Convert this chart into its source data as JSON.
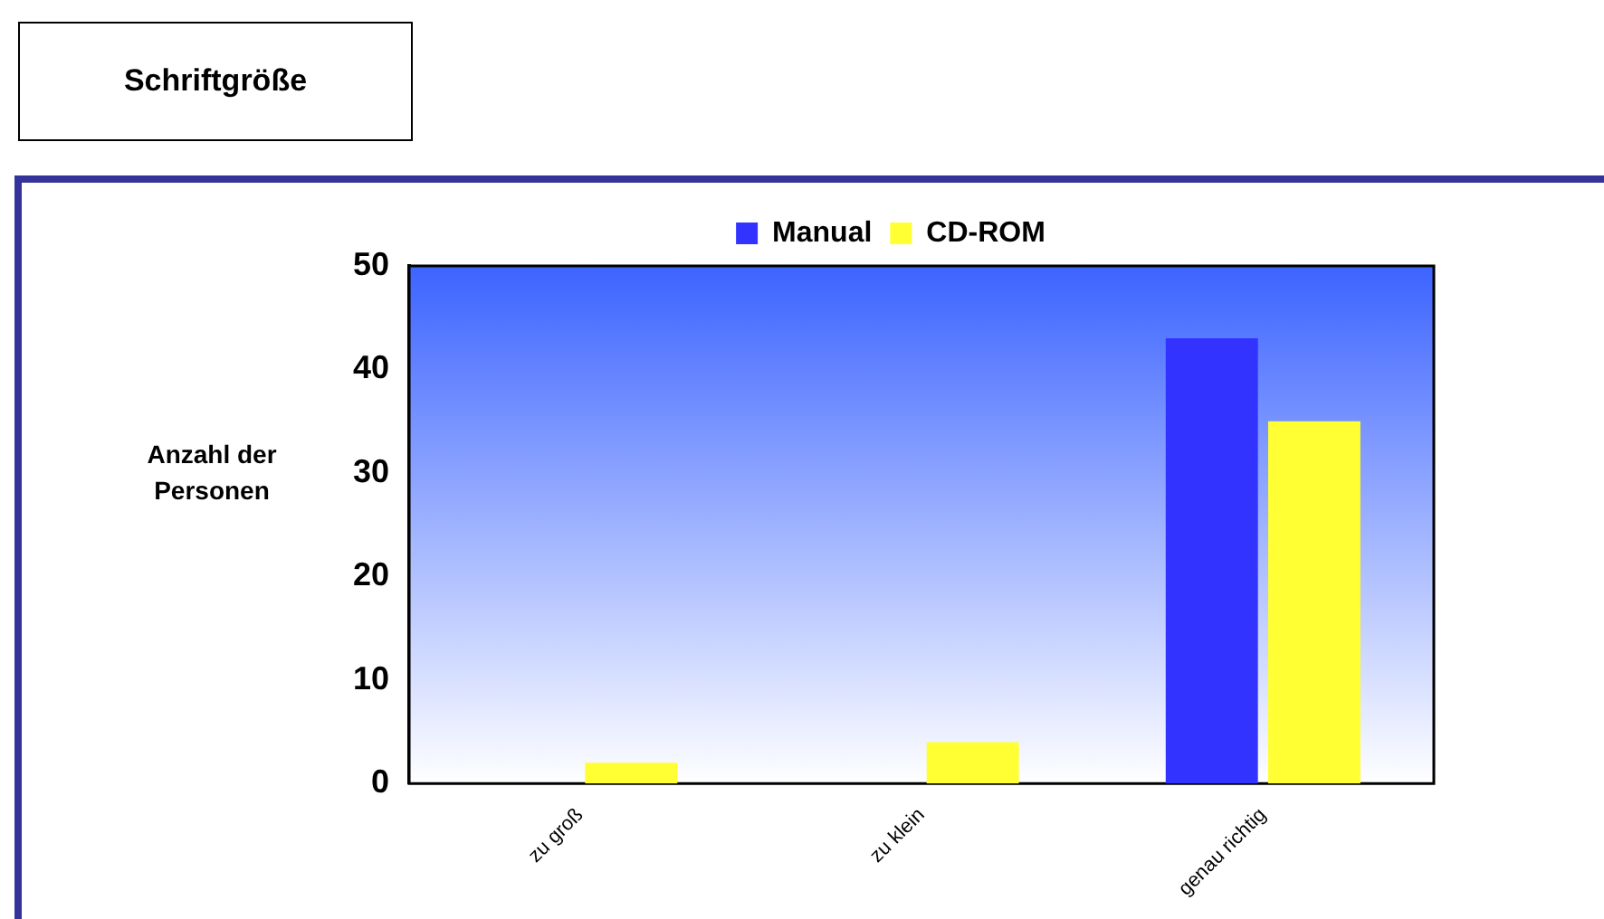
{
  "chart_data": {
    "type": "bar",
    "title": "Schriftgröße",
    "ylabel": "Anzahl der Personen",
    "categories": [
      "zu groß",
      "zu klein",
      "genau richtig"
    ],
    "series": [
      {
        "name": "Manual",
        "color": "#3333ff",
        "values": [
          0,
          0,
          43
        ]
      },
      {
        "name": "CD-ROM",
        "color": "#ffff33",
        "values": [
          2,
          4,
          35
        ]
      }
    ],
    "ylim": [
      0,
      50
    ],
    "yticks": [
      0,
      10,
      20,
      30,
      40,
      50
    ],
    "grid": false,
    "legend": "top"
  }
}
